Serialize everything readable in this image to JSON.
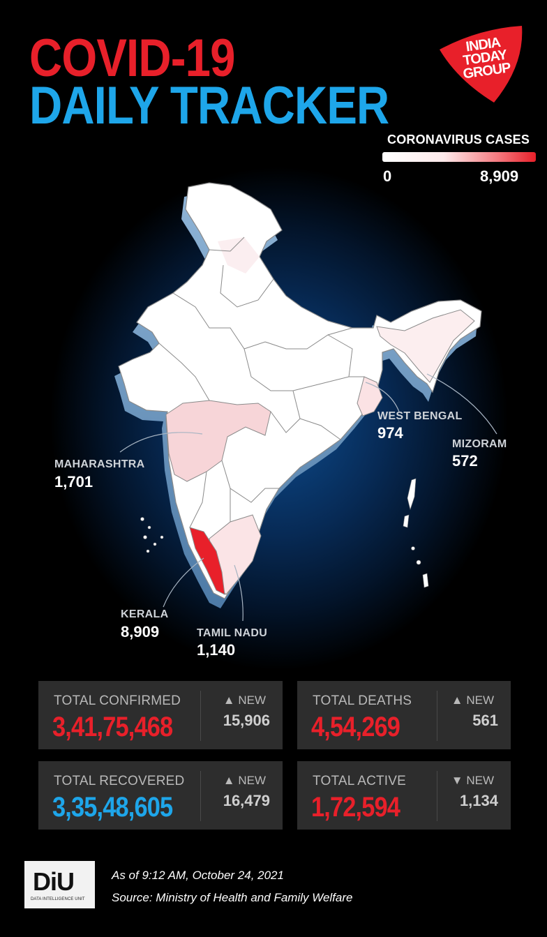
{
  "title": {
    "line1": "COVID-19",
    "line2": "DAILY TRACKER"
  },
  "logo": {
    "line1": "INDIA",
    "line2": "TODAY",
    "line3": "GROUP",
    "color": "#e8202a"
  },
  "legend": {
    "title": "CORONAVIRUS CASES",
    "min": "0",
    "max": "8,909",
    "min_color": "#ffffff",
    "max_color": "#e8202a"
  },
  "map_labels": {
    "maharashtra": {
      "name": "MAHARASHTRA",
      "value": "1,701"
    },
    "west_bengal": {
      "name": "WEST BENGAL",
      "value": "974"
    },
    "mizoram": {
      "name": "MIZORAM",
      "value": "572"
    },
    "kerala": {
      "name": "KERALA",
      "value": "8,909"
    },
    "tamil_nadu": {
      "name": "TAMIL NADU",
      "value": "1,140"
    }
  },
  "stats": {
    "confirmed": {
      "label": "TOTAL CONFIRMED",
      "value": "3,41,75,468",
      "new_label": "▲ NEW",
      "new_value": "15,906"
    },
    "deaths": {
      "label": "TOTAL DEATHS",
      "value": "4,54,269",
      "new_label": "▲ NEW",
      "new_value": "561"
    },
    "recovered": {
      "label": "TOTAL RECOVERED",
      "value": "3,35,48,605",
      "new_label": "▲ NEW",
      "new_value": "16,479"
    },
    "active": {
      "label": "TOTAL ACTIVE",
      "value": "1,72,594",
      "new_label": "▼ NEW",
      "new_value": "1,134"
    }
  },
  "footer": {
    "logo_text": "DiU",
    "logo_sub": "DATA INTELLIGENCE UNIT",
    "as_of": "As of 9:12 AM, October 24, 2021",
    "source": "Source: Ministry of Health and Family Welfare"
  },
  "colors": {
    "red": "#e8202a",
    "blue": "#1ea6ea",
    "panel": "#2d2d2d"
  }
}
